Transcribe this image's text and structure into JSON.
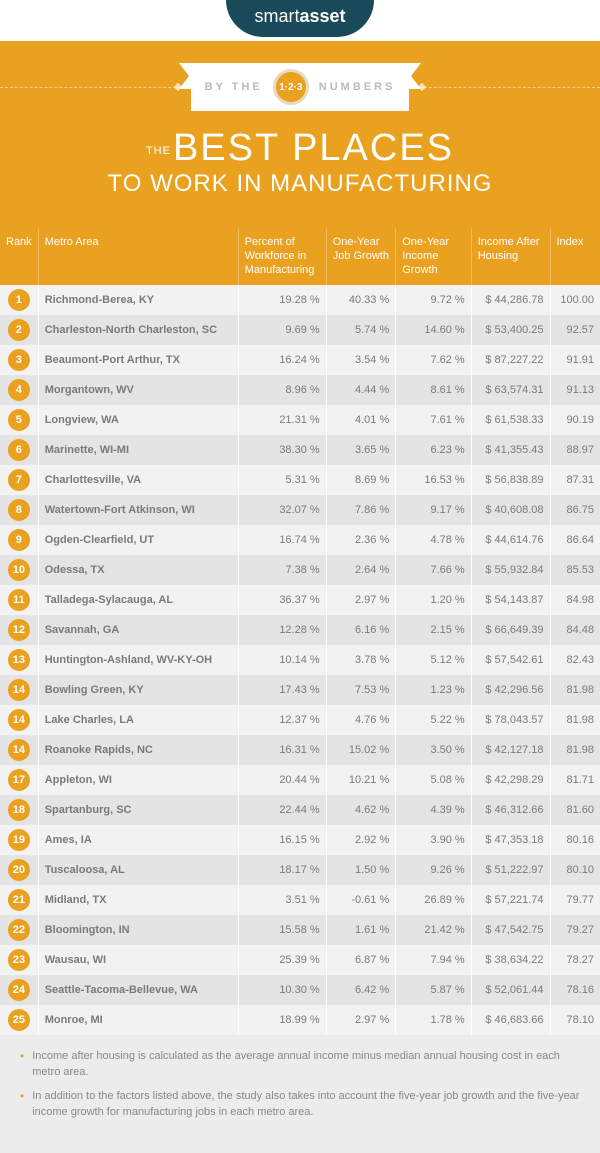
{
  "brand": {
    "part1": "smart",
    "part2": "asset"
  },
  "banner": {
    "left": "BY THE",
    "right": "NUMBERS",
    "circle": "1·2·3"
  },
  "title": {
    "the": "THE",
    "line1": "BEST PLACES",
    "line2": "TO WORK IN MANUFACTURING"
  },
  "colors": {
    "accent": "#eaa11f",
    "logo_bg": "#1a4a5a",
    "row_odd": "#f2f2f2",
    "row_even": "#e4e4e4",
    "text_muted": "#7a7a7a",
    "footer_bg": "#ececec"
  },
  "columns": [
    {
      "key": "rank",
      "label": "Rank",
      "class": "th-rank"
    },
    {
      "key": "metro",
      "label": "Metro Area",
      "class": "th-metro"
    },
    {
      "key": "percent",
      "label": "Percent of Workforce in Manufacturing",
      "class": "th-percent"
    },
    {
      "key": "job_growth",
      "label": "One-Year Job Growth",
      "class": ""
    },
    {
      "key": "income_growth",
      "label": "One-Year Income Growth",
      "class": ""
    },
    {
      "key": "income_after_housing",
      "label": "Income After Housing",
      "class": ""
    },
    {
      "key": "index",
      "label": "Index",
      "class": "th-index"
    }
  ],
  "rows": [
    {
      "rank": "1",
      "metro": "Richmond-Berea, KY",
      "percent": "19.28 %",
      "job_growth": "40.33 %",
      "income_growth": "9.72 %",
      "income_after_housing": "$ 44,286.78",
      "index": "100.00"
    },
    {
      "rank": "2",
      "metro": "Charleston-North Charleston, SC",
      "percent": "9.69 %",
      "job_growth": "5.74 %",
      "income_growth": "14.60 %",
      "income_after_housing": "$ 53,400.25",
      "index": "92.57"
    },
    {
      "rank": "3",
      "metro": "Beaumont-Port Arthur, TX",
      "percent": "16.24 %",
      "job_growth": "3.54 %",
      "income_growth": "7.62 %",
      "income_after_housing": "$  87,227.22",
      "index": "91.91"
    },
    {
      "rank": "4",
      "metro": "Morgantown, WV",
      "percent": "8.96 %",
      "job_growth": "4.44 %",
      "income_growth": "8.61 %",
      "income_after_housing": "$  63,574.31",
      "index": "91.13"
    },
    {
      "rank": "5",
      "metro": "Longview, WA",
      "percent": "21.31 %",
      "job_growth": "4.01 %",
      "income_growth": "7.61 %",
      "income_after_housing": "$  61,538.33",
      "index": "90.19"
    },
    {
      "rank": "6",
      "metro": "Marinette, WI-MI",
      "percent": "38.30 %",
      "job_growth": "3.65 %",
      "income_growth": "6.23 %",
      "income_after_housing": "$  41,355.43",
      "index": "88.97"
    },
    {
      "rank": "7",
      "metro": "Charlottesville, VA",
      "percent": "5.31 %",
      "job_growth": "8.69 %",
      "income_growth": "16.53 %",
      "income_after_housing": "$ 56,838.89",
      "index": "87.31"
    },
    {
      "rank": "8",
      "metro": "Watertown-Fort Atkinson, WI",
      "percent": "32.07 %",
      "job_growth": "7.86 %",
      "income_growth": "9.17 %",
      "income_after_housing": "$ 40,608.08",
      "index": "86.75"
    },
    {
      "rank": "9",
      "metro": "Ogden-Clearfield, UT",
      "percent": "16.74 %",
      "job_growth": "2.36 %",
      "income_growth": "4.78 %",
      "income_after_housing": "$  44,614.76",
      "index": "86.64"
    },
    {
      "rank": "10",
      "metro": "Odessa, TX",
      "percent": "7.38 %",
      "job_growth": "2.64 %",
      "income_growth": "7.66 %",
      "income_after_housing": "$ 55,932.84",
      "index": "85.53"
    },
    {
      "rank": "11",
      "metro": "Talladega-Sylacauga, AL",
      "percent": "36.37 %",
      "job_growth": "2.97 %",
      "income_growth": "1.20 %",
      "income_after_housing": "$  54,143.87",
      "index": "84.98"
    },
    {
      "rank": "12",
      "metro": "Savannah, GA",
      "percent": "12.28 %",
      "job_growth": "6.16 %",
      "income_growth": "2.15 %",
      "income_after_housing": "$ 66,649.39",
      "index": "84.48"
    },
    {
      "rank": "13",
      "metro": "Huntington-Ashland, WV-KY-OH",
      "percent": "10.14 %",
      "job_growth": "3.78 %",
      "income_growth": "5.12 %",
      "income_after_housing": "$  57,542.61",
      "index": "82.43"
    },
    {
      "rank": "14",
      "metro": "Bowling Green, KY",
      "percent": "17.43 %",
      "job_growth": "7.53 %",
      "income_growth": "1.23 %",
      "income_after_housing": "$ 42,296.56",
      "index": "81.98"
    },
    {
      "rank": "14",
      "metro": "Lake Charles, LA",
      "percent": "12.37 %",
      "job_growth": "4.76 %",
      "income_growth": "5.22 %",
      "income_after_housing": "$ 78,043.57",
      "index": "81.98"
    },
    {
      "rank": "14",
      "metro": "Roanoke Rapids, NC",
      "percent": "16.31 %",
      "job_growth": "15.02 %",
      "income_growth": "3.50 %",
      "income_after_housing": "$   42,127.18",
      "index": "81.98"
    },
    {
      "rank": "17",
      "metro": "Appleton, WI",
      "percent": "20.44 %",
      "job_growth": "10.21 %",
      "income_growth": "5.08 %",
      "income_after_housing": "$ 42,298.29",
      "index": "81.71"
    },
    {
      "rank": "18",
      "metro": "Spartanburg, SC",
      "percent": "22.44 %",
      "job_growth": "4.62 %",
      "income_growth": "4.39 %",
      "income_after_housing": "$  46,312.66",
      "index": "81.60"
    },
    {
      "rank": "19",
      "metro": "Ames, IA",
      "percent": "16.15 %",
      "job_growth": "2.92 %",
      "income_growth": "3.90 %",
      "income_after_housing": "$  47,353.18",
      "index": "80.16"
    },
    {
      "rank": "20",
      "metro": "Tuscaloosa, AL",
      "percent": "18.17 %",
      "job_growth": "1.50 %",
      "income_growth": "9.26 %",
      "income_after_housing": "$  51,222.97",
      "index": "80.10"
    },
    {
      "rank": "21",
      "metro": "Midland, TX",
      "percent": "3.51 %",
      "job_growth": "-0.61 %",
      "income_growth": "26.89 %",
      "income_after_housing": "$  57,221.74",
      "index": "79.77"
    },
    {
      "rank": "22",
      "metro": "Bloomington, IN",
      "percent": "15.58 %",
      "job_growth": "1.61 %",
      "income_growth": "21.42 %",
      "income_after_housing": "$  47,542.75",
      "index": "79.27"
    },
    {
      "rank": "23",
      "metro": "Wausau, WI",
      "percent": "25.39 %",
      "job_growth": "6.87 %",
      "income_growth": "7.94 %",
      "income_after_housing": "$ 38,634.22",
      "index": "78.27"
    },
    {
      "rank": "24",
      "metro": "Seattle-Tacoma-Bellevue, WA",
      "percent": "10.30 %",
      "job_growth": "6.42 %",
      "income_growth": "5.87 %",
      "income_after_housing": "$  52,061.44",
      "index": "78.16"
    },
    {
      "rank": "25",
      "metro": "Monroe, MI",
      "percent": "18.99 %",
      "job_growth": "2.97 %",
      "income_growth": "1.78 %",
      "income_after_housing": "$ 46,683.66",
      "index": "78.10"
    }
  ],
  "footnotes": [
    "Income after housing is calculated as the average annual income minus median annual housing cost in each metro area.",
    "In addition to the factors listed above, the study also takes into account the five-year job growth and the five-year income growth for manufacturing jobs in each metro area."
  ]
}
